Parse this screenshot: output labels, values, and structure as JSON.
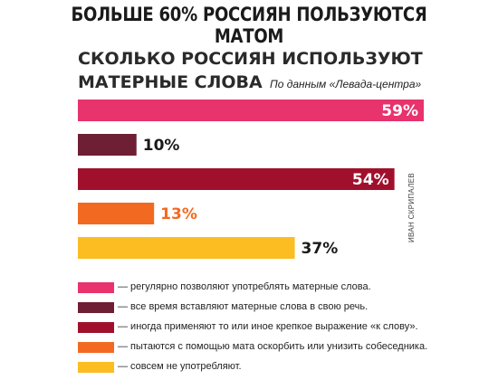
{
  "headline": "БОЛЬШЕ 60% РОССИЯН ПОЛЬЗУЮТСЯ МАТОМ",
  "title_line1": "СКОЛЬКО РОССИЯН ИСПОЛЬЗУЮТ",
  "title_line2": "МАТЕРНЫЕ СЛОВА",
  "source": "По данным «Левада-центра»",
  "credit": "ИВАН СКРИПАЛЕВ",
  "chart_data": {
    "type": "bar",
    "orientation": "horizontal",
    "title": "СКОЛЬКО РОССИЯН ИСПОЛЬЗУЮТ МАТЕРНЫЕ СЛОВА",
    "xlim": [
      0,
      59
    ],
    "grid": false,
    "legend_placement": "bottom",
    "categories": [
      "— регулярно позволяют употреблять матерные слова.",
      "— все время вставляют матерные слова в свою речь.",
      "— иногда применяют то или иное крепкое выражение «к слову».",
      "— пытаются с помощью мата оскорбить или унизить собеседника.",
      "— совсем не употребляют."
    ],
    "values": [
      59,
      10,
      54,
      13,
      37
    ],
    "value_labels": [
      "59%",
      "10%",
      "54%",
      "13%",
      "37%"
    ],
    "colors": [
      "#e8336d",
      "#6e1f33",
      "#a0102c",
      "#f26a21",
      "#fbbd22"
    ],
    "label_colors": [
      "#ffffff",
      "#1a1a1a",
      "#ffffff",
      "#f26a21",
      "#1a1a1a"
    ],
    "label_inside": [
      true,
      false,
      true,
      false,
      false
    ]
  }
}
